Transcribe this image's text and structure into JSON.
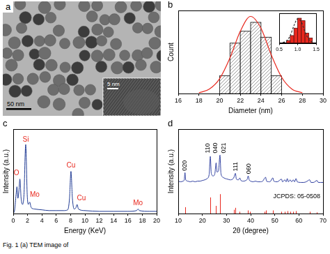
{
  "image_panel": {
    "letter": "a",
    "scale_bar": "50 nm",
    "inset_scale_bar": "5 nm"
  },
  "chart_data": [
    {
      "panel": "b",
      "type": "histogram",
      "x_label": "Diameter (nm)",
      "y_label": "Count",
      "bins": [
        20,
        21,
        22,
        23,
        24,
        25,
        26
      ],
      "counts": [
        6,
        17,
        21,
        24,
        19,
        6
      ],
      "color": "#7f7f7f",
      "xlim": [
        16,
        30
      ],
      "xticks": [
        16,
        18,
        20,
        22,
        24,
        26,
        28,
        30
      ],
      "ylim": [
        0,
        28
      ],
      "tick_labels": "x",
      "grid": false,
      "fit": {
        "type": "line",
        "color": "#e8281e",
        "line_style": "solid",
        "x": [
          18,
          19,
          20,
          21,
          22,
          23,
          24,
          25,
          26,
          27,
          28
        ],
        "values": [
          0.3,
          1.5,
          5,
          12,
          21,
          26,
          22,
          13,
          5.5,
          1.5,
          0.3
        ]
      },
      "inset": {
        "type": "histogram",
        "bins": [
          0.7,
          0.8,
          0.9,
          1.0,
          1.1,
          1.2,
          1.3,
          1.4
        ],
        "counts": [
          1,
          3,
          6,
          10,
          9,
          4,
          2
        ],
        "color": "#e8281e",
        "xlim": [
          0.5,
          1.5
        ],
        "xticks": [
          0.5,
          {
            "value": 1,
            "label": "1.0"
          },
          1.5
        ],
        "ylim": [
          0,
          12
        ],
        "tick_labels": "x",
        "grid": false,
        "fit": {
          "type": "line",
          "color": "#333333",
          "line_style": "dashed",
          "x": [
            0.6,
            0.7,
            0.8,
            0.9,
            1.0,
            1.1,
            1.2,
            1.3,
            1.4
          ],
          "values": [
            0.2,
            0.8,
            3,
            7,
            9.8,
            8.5,
            4.5,
            1.5,
            0.3
          ]
        }
      }
    },
    {
      "panel": "c",
      "type": "line",
      "x_label": "Energy (KeV)",
      "y_label": "Intensity (a.u.)",
      "color": "#1f3a93",
      "x": [
        0,
        0.2,
        0.4,
        0.52,
        0.65,
        0.8,
        0.93,
        1.1,
        1.3,
        1.5,
        1.74,
        1.95,
        2.1,
        2.3,
        2.5,
        3,
        4,
        5,
        6,
        7,
        7.6,
        7.85,
        8.05,
        8.25,
        8.5,
        8.75,
        8.9,
        9.1,
        10,
        12,
        14,
        16,
        17.2,
        17.4,
        17.6,
        19,
        20
      ],
      "values": [
        0,
        5,
        25,
        35,
        20,
        30,
        45,
        20,
        12,
        25,
        90,
        25,
        12,
        15,
        8,
        6,
        5,
        4,
        4,
        4,
        5,
        20,
        55,
        20,
        6,
        8,
        12,
        6,
        4,
        3,
        3,
        3,
        4,
        6,
        4,
        3,
        3
      ],
      "xlim": [
        0,
        20
      ],
      "xticks": [
        0,
        2,
        4,
        6,
        8,
        10,
        12,
        14,
        16,
        18,
        20
      ],
      "ylim": [
        0,
        110
      ],
      "tick_labels": "x",
      "grid": false,
      "annotations": [
        {
          "text": "O",
          "x": 0.45,
          "y": 48
        },
        {
          "text": "Si",
          "x": 1.74,
          "y": 92
        },
        {
          "text": "Mo",
          "x": 3.0,
          "y": 20
        },
        {
          "text": "Cu",
          "x": 8.05,
          "y": 58
        },
        {
          "text": "Cu",
          "x": 9.5,
          "y": 15
        },
        {
          "text": "Mo",
          "x": 17.4,
          "y": 9
        }
      ]
    },
    {
      "panel": "d",
      "type": "line",
      "x_label": "2θ (degree)",
      "y_label": "Intensity (a.u.)",
      "color": "#3040a0",
      "x": [
        10,
        11,
        12,
        12.5,
        12.8,
        13.1,
        14,
        15,
        16,
        17,
        18,
        19,
        20,
        21,
        22,
        22.8,
        23.3,
        23.7,
        24.5,
        25.2,
        25.7,
        26.1,
        26.7,
        27.3,
        27.7,
        28.5,
        29.5,
        30.5,
        31.5,
        32.5,
        33.1,
        33.7,
        34.1,
        35,
        35.5,
        36,
        37,
        38,
        38.6,
        39,
        39.4,
        40,
        41,
        42,
        43,
        44,
        45,
        45.7,
        46.2,
        46.6,
        48,
        49.2,
        49.6,
        51,
        52.8,
        53.2,
        54.2,
        54.7,
        55.2,
        55.6,
        56.4,
        57,
        57.7,
        58.2,
        58.8,
        59.3,
        61,
        62,
        63,
        64.5,
        65,
        66,
        67.5,
        68,
        69,
        70
      ],
      "values": [
        50,
        49,
        50,
        52,
        63,
        52,
        50,
        49,
        50,
        49,
        50,
        50,
        51,
        52,
        54,
        60,
        88,
        62,
        58,
        62,
        78,
        64,
        66,
        90,
        62,
        56,
        54,
        53,
        52,
        53,
        56,
        62,
        53,
        52,
        55,
        51,
        50,
        51,
        53,
        58,
        52,
        50,
        49,
        50,
        49,
        49,
        50,
        54,
        56,
        50,
        49,
        55,
        50,
        49,
        53,
        49,
        52,
        49,
        54,
        49,
        52,
        49,
        52,
        49,
        54,
        49,
        48,
        48,
        49,
        52,
        48,
        48,
        51,
        48,
        48,
        48
      ],
      "xlim": [
        10,
        70
      ],
      "xticks": [
        10,
        20,
        30,
        40,
        50,
        60,
        70
      ],
      "ylim": [
        0,
        130
      ],
      "tick_labels": "x",
      "grid": false,
      "reference": {
        "label": "JCPDS: 05-0508",
        "color": "#e8281e",
        "x": [
          12.8,
          23.3,
          25.7,
          27.3,
          33.1,
          33.7,
          35.5,
          38.9,
          39.7,
          45.7,
          46.3,
          49.2,
          52.8,
          54.2,
          55.2,
          56.4,
          57.7,
          58.8,
          64.5,
          67.5
        ],
        "values": [
          10,
          25,
          12,
          30,
          6,
          9,
          3,
          5,
          3,
          3,
          5,
          5,
          3,
          3,
          4,
          3,
          3,
          4,
          3,
          2
        ]
      },
      "annotations": [
        {
          "text": "020",
          "x": 12.8,
          "y": 66
        },
        {
          "text": "110",
          "x": 22.2,
          "y": 93
        },
        {
          "text": "040",
          "x": 25.5,
          "y": 93
        },
        {
          "text": "021",
          "x": 28.8,
          "y": 93
        },
        {
          "text": "111",
          "x": 33.7,
          "y": 65
        },
        {
          "text": "060",
          "x": 39.3,
          "y": 61
        }
      ]
    }
  ],
  "caption": "Fig. 1 (a) TEM image of"
}
